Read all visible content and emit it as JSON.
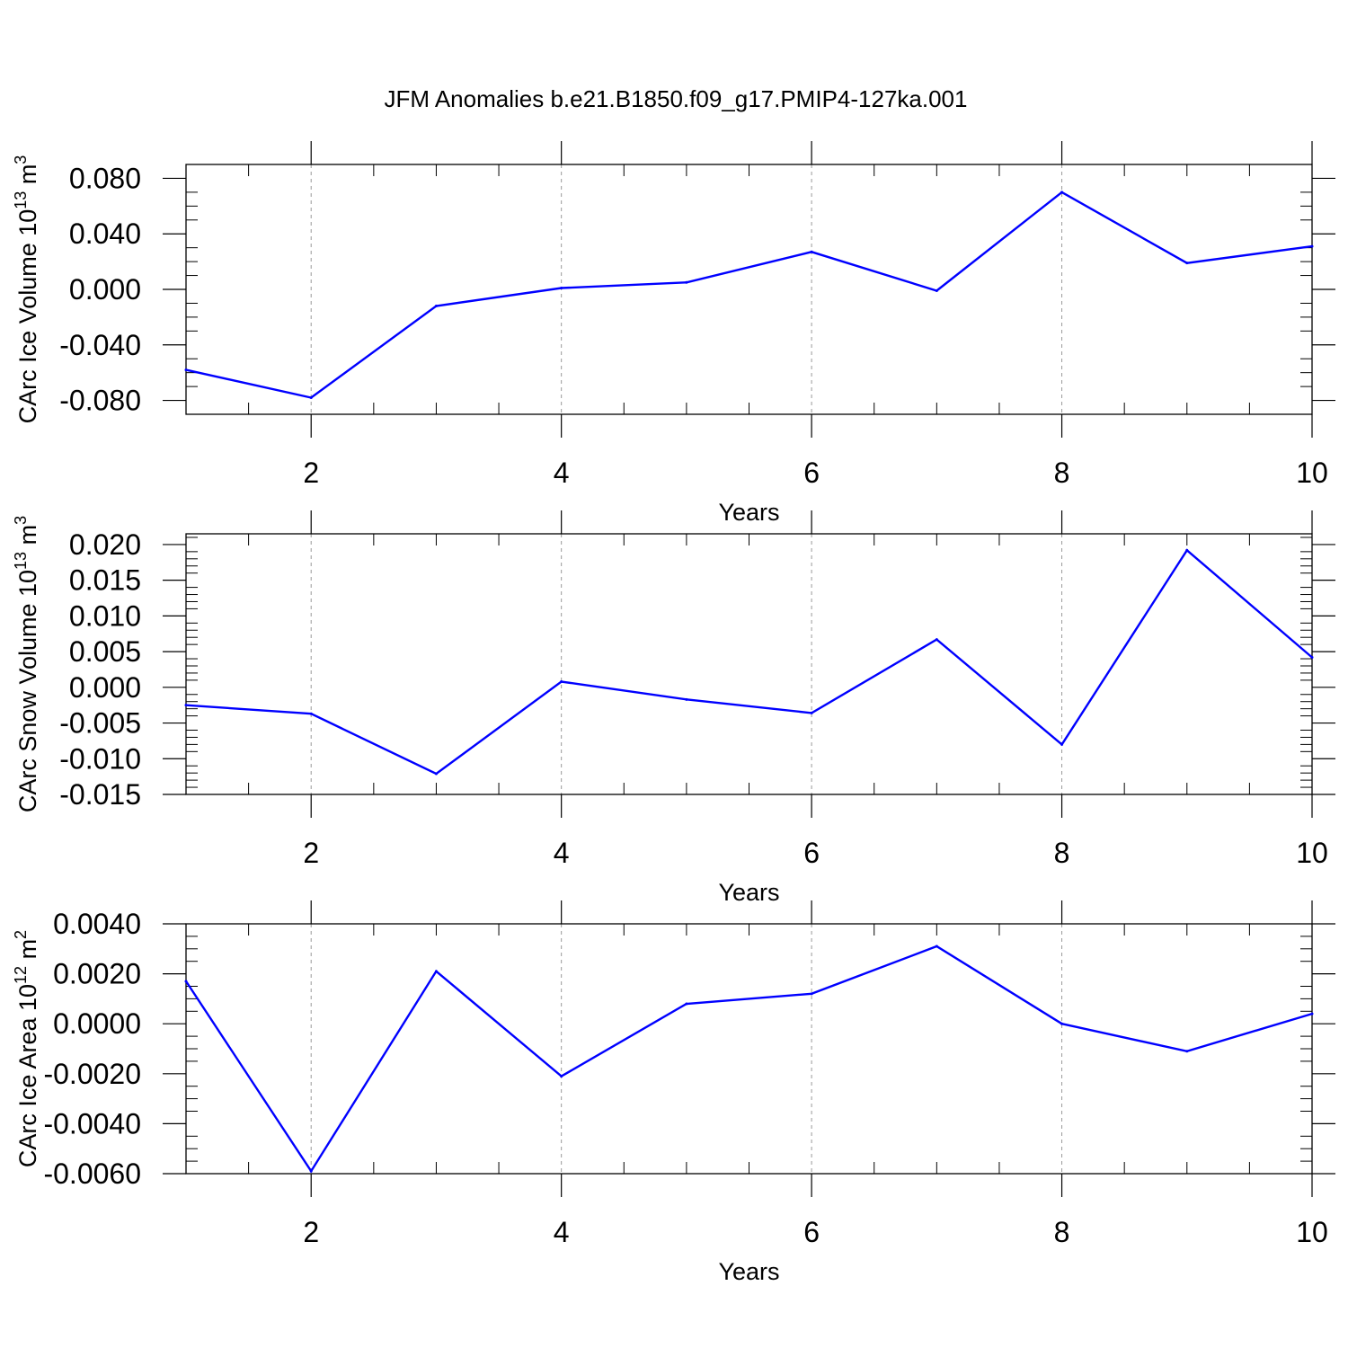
{
  "title": "JFM Anomalies b.e21.B1850.f09_g17.PMIP4-127ka.001",
  "chart_data": [
    {
      "type": "line",
      "title": "JFM Anomalies b.e21.B1850.f09_g17.PMIP4-127ka.001",
      "xlabel": "Years",
      "ylabel": "CArc Ice Volume 10",
      "ylabel_sup1": "13",
      "ylabel_unit": " m",
      "ylabel_sup2": "3",
      "xlim": [
        1,
        10
      ],
      "ylim": [
        -0.09,
        0.09
      ],
      "xticks": [
        "2",
        "4",
        "6",
        "8",
        "10"
      ],
      "xtick_values": [
        2,
        4,
        6,
        8,
        10
      ],
      "yticks": [
        "-0.080",
        "-0.040",
        "0.000",
        "0.040",
        "0.080"
      ],
      "ytick_values": [
        -0.08,
        -0.04,
        0.0,
        0.04,
        0.08
      ],
      "yminor_step": 0.01,
      "line_color": "#0000ff",
      "series": [
        {
          "name": "CArc Ice Volume",
          "x": [
            1,
            2,
            3,
            4,
            5,
            6,
            7,
            8,
            9,
            10
          ],
          "y": [
            -0.058,
            -0.078,
            -0.012,
            0.001,
            0.005,
            0.027,
            -0.001,
            0.07,
            0.019,
            0.031
          ]
        }
      ]
    },
    {
      "type": "line",
      "xlabel": "Years",
      "ylabel": "CArc Snow Volume 10",
      "ylabel_sup1": "13",
      "ylabel_unit": " m",
      "ylabel_sup2": "3",
      "xlim": [
        1,
        10
      ],
      "ylim": [
        -0.015,
        0.0215
      ],
      "xticks": [
        "2",
        "4",
        "6",
        "8",
        "10"
      ],
      "xtick_values": [
        2,
        4,
        6,
        8,
        10
      ],
      "yticks": [
        "-0.015",
        "-0.010",
        "-0.005",
        "0.000",
        "0.005",
        "0.010",
        "0.015",
        "0.020"
      ],
      "ytick_values": [
        -0.015,
        -0.01,
        -0.005,
        0.0,
        0.005,
        0.01,
        0.015,
        0.02
      ],
      "yminor_step": 0.001,
      "line_color": "#0000ff",
      "series": [
        {
          "name": "CArc Snow Volume",
          "x": [
            1,
            2,
            3,
            4,
            5,
            6,
            7,
            8,
            9,
            10
          ],
          "y": [
            -0.0025,
            -0.0037,
            -0.0121,
            0.0008,
            -0.0017,
            -0.0036,
            0.0067,
            -0.008,
            0.0192,
            0.0042
          ]
        }
      ]
    },
    {
      "type": "line",
      "xlabel": "Years",
      "ylabel": "CArc Ice Area 10",
      "ylabel_sup1": "12",
      "ylabel_unit": " m",
      "ylabel_sup2": "2",
      "xlim": [
        1,
        10
      ],
      "ylim": [
        -0.006,
        0.004
      ],
      "xticks": [
        "2",
        "4",
        "6",
        "8",
        "10"
      ],
      "xtick_values": [
        2,
        4,
        6,
        8,
        10
      ],
      "yticks": [
        "-0.0060",
        "-0.0040",
        "-0.0020",
        "0.0000",
        "0.0020",
        "0.0040"
      ],
      "ytick_values": [
        -0.006,
        -0.004,
        -0.002,
        0.0,
        0.002,
        0.004
      ],
      "yminor_step": 0.0005,
      "line_color": "#0000ff",
      "series": [
        {
          "name": "CArc Ice Area",
          "x": [
            1,
            2,
            3,
            4,
            5,
            6,
            7,
            8,
            9,
            10
          ],
          "y": [
            0.0017,
            -0.0059,
            0.0021,
            -0.0021,
            0.0008,
            0.0012,
            0.0031,
            0.0,
            -0.0011,
            0.0004
          ]
        }
      ]
    }
  ]
}
